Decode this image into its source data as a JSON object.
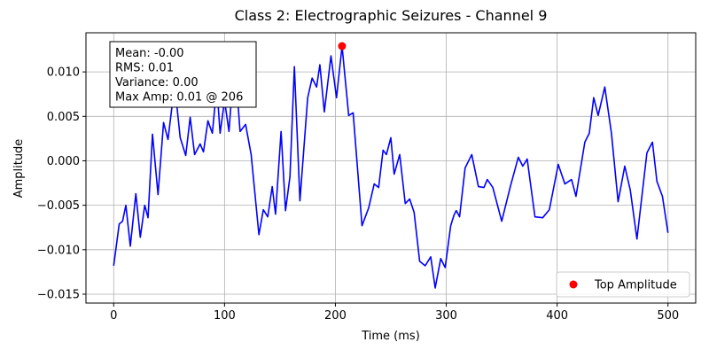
{
  "chart_data": {
    "type": "line",
    "title": "Class 2: Electrographic Seizures - Channel 9",
    "xlabel": "Time (ms)",
    "ylabel": "Amplitude",
    "annotations": [
      "Mean: -0.00",
      "RMS: 0.01",
      "Variance: 0.00",
      "Max Amp: 0.01 @ 206"
    ],
    "xlim": [
      -25,
      525
    ],
    "xticks": [
      0,
      100,
      200,
      300,
      400,
      500
    ],
    "ylim": [
      -0.016,
      0.0144
    ],
    "yticks": [
      {
        "value": -0.015,
        "label": "−0.015"
      },
      {
        "value": -0.01,
        "label": "−0.010"
      },
      {
        "value": -0.005,
        "label": "−0.005"
      },
      {
        "value": 0,
        "label": "0.000"
      },
      {
        "value": 0.005,
        "label": "0.005"
      },
      {
        "value": 0.01,
        "label": "0.010"
      }
    ],
    "grid": true,
    "legend": "lower right",
    "series": [
      {
        "type": "line",
        "color": "#0000ff",
        "x": [
          0,
          5,
          8,
          11,
          15,
          20,
          24,
          28,
          31,
          35,
          40,
          45,
          49,
          55,
          60,
          65,
          69,
          73,
          78,
          81,
          85,
          89,
          93,
          96,
          100,
          104,
          109,
          114,
          119,
          124,
          131,
          135,
          139,
          143,
          146,
          151,
          155,
          159,
          163,
          168,
          175,
          179,
          183,
          186,
          190,
          196,
          201,
          206,
          212,
          216,
          224,
          230,
          235,
          239,
          243,
          246,
          250,
          253,
          258,
          263,
          267,
          271,
          276,
          281,
          286,
          290,
          295,
          299,
          304,
          307,
          309,
          312,
          317,
          323,
          329,
          334,
          337,
          342,
          350,
          358,
          365,
          369,
          373,
          380,
          387,
          393,
          401,
          407,
          413,
          417,
          425,
          429,
          433,
          437,
          443,
          449,
          455,
          461,
          466,
          472,
          481,
          486,
          490,
          495,
          500
        ],
        "values": [
          -0.0118,
          -0.0071,
          -0.0068,
          -0.005,
          -0.0096,
          -0.0037,
          -0.0086,
          -0.005,
          -0.0064,
          0.003,
          -0.0038,
          0.0043,
          0.0024,
          0.0086,
          0.0026,
          0.0006,
          0.0049,
          0.0007,
          0.0019,
          0.001,
          0.0045,
          0.0031,
          0.0084,
          0.0031,
          0.0068,
          0.0033,
          0.0117,
          0.0033,
          0.0041,
          0.0007,
          -0.0083,
          -0.0055,
          -0.0063,
          -0.0029,
          -0.006,
          0.0033,
          -0.0056,
          -0.0018,
          0.0106,
          -0.0045,
          0.0071,
          0.0093,
          0.0083,
          0.0108,
          0.0055,
          0.0118,
          0.0071,
          0.0129,
          0.0051,
          0.0054,
          -0.0073,
          -0.0053,
          -0.0026,
          -0.003,
          0.0012,
          0.0007,
          0.0026,
          -0.0015,
          0.0007,
          -0.0048,
          -0.0043,
          -0.0058,
          -0.0113,
          -0.0118,
          -0.0108,
          -0.0143,
          -0.011,
          -0.012,
          -0.0073,
          -0.0061,
          -0.0056,
          -0.0063,
          -0.0008,
          0.0007,
          -0.0029,
          -0.003,
          -0.0021,
          -0.003,
          -0.0068,
          -0.0028,
          0.0004,
          -0.0006,
          0.0002,
          -0.0063,
          -0.0064,
          -0.0055,
          -0.0004,
          -0.0026,
          -0.0021,
          -0.004,
          0.0021,
          0.0031,
          0.0071,
          0.0051,
          0.0083,
          0.0031,
          -0.0046,
          -0.0006,
          -0.0033,
          -0.0088,
          0.0009,
          0.0021,
          -0.0023,
          -0.004,
          -0.0081
        ]
      },
      {
        "type": "scatter",
        "name": "Top Amplitude",
        "color": "#ff0000",
        "x": [
          206
        ],
        "values": [
          0.0129
        ]
      }
    ]
  }
}
